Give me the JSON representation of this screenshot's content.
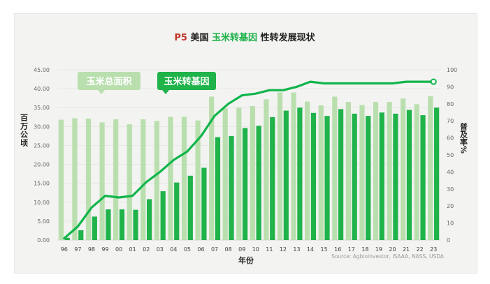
{
  "title": {
    "prefix": "P5",
    "pre": "美国",
    "highlight": "玉米转基因",
    "post": "性转发展现状"
  },
  "legend": {
    "area_label": "玉米总面积",
    "gm_label": "玉米转基因"
  },
  "axes": {
    "left_label": "百万公顷",
    "right_label": "普及率%",
    "x_label": "年份"
  },
  "source": "Source: Agbioinvestor, ISAAA, NASS, USDA",
  "colors": {
    "title_red": "#c0392b",
    "green": "#1fb34a",
    "light_green": "#b9dfae",
    "line": "#10b54b",
    "bg": "#f3f3f1"
  },
  "chart_data": {
    "type": "bar+line",
    "title": "P5 美国玉米转基因性转发展现状",
    "categories": [
      "96",
      "97",
      "98",
      "99",
      "00",
      "01",
      "02",
      "03",
      "04",
      "05",
      "06",
      "07",
      "08",
      "09",
      "10",
      "11",
      "12",
      "13",
      "14",
      "15",
      "16",
      "17",
      "18",
      "19",
      "20",
      "21",
      "22",
      "23"
    ],
    "left_axis": {
      "label": "百万公顷",
      "range": [
        0,
        45
      ],
      "ticks": [
        "0.00",
        "5.00",
        "10.00",
        "15.00",
        "20.00",
        "25.00",
        "30.00",
        "35.00",
        "40.00",
        "45.00"
      ]
    },
    "right_axis": {
      "label": "普及率%",
      "range": [
        0,
        100
      ],
      "ticks": [
        "0",
        "10",
        "20",
        "30",
        "40",
        "50",
        "60",
        "70",
        "80",
        "90",
        "100"
      ]
    },
    "xlabel": "年份",
    "series": [
      {
        "name": "玉米总面积",
        "kind": "bar",
        "axis": "left",
        "values": [
          31.8,
          32.2,
          32.1,
          31.1,
          31.9,
          30.6,
          31.9,
          31.5,
          32.6,
          32.6,
          31.6,
          37.9,
          34.8,
          35.0,
          35.4,
          37.2,
          39.0,
          39.0,
          36.6,
          35.6,
          37.9,
          36.5,
          35.7,
          36.5,
          36.5,
          37.4,
          35.9,
          38.0
        ]
      },
      {
        "name": "玉米转基因",
        "kind": "bar",
        "axis": "left",
        "values": [
          0.6,
          2.6,
          6.2,
          8.1,
          8.1,
          8.0,
          10.8,
          12.9,
          15.2,
          17.0,
          19.1,
          27.2,
          27.5,
          29.6,
          30.2,
          32.5,
          34.2,
          35.0,
          33.6,
          32.8,
          34.6,
          33.4,
          32.8,
          33.7,
          33.4,
          34.4,
          33.0,
          35.0
        ]
      },
      {
        "name": "普及率",
        "kind": "line",
        "axis": "right",
        "values": [
          1,
          8,
          19,
          26,
          25,
          26,
          34,
          40,
          47,
          52,
          61,
          73,
          80,
          85,
          86,
          88,
          88,
          90,
          93,
          92,
          92,
          92,
          92,
          92,
          92,
          93,
          93,
          93
        ]
      }
    ]
  }
}
